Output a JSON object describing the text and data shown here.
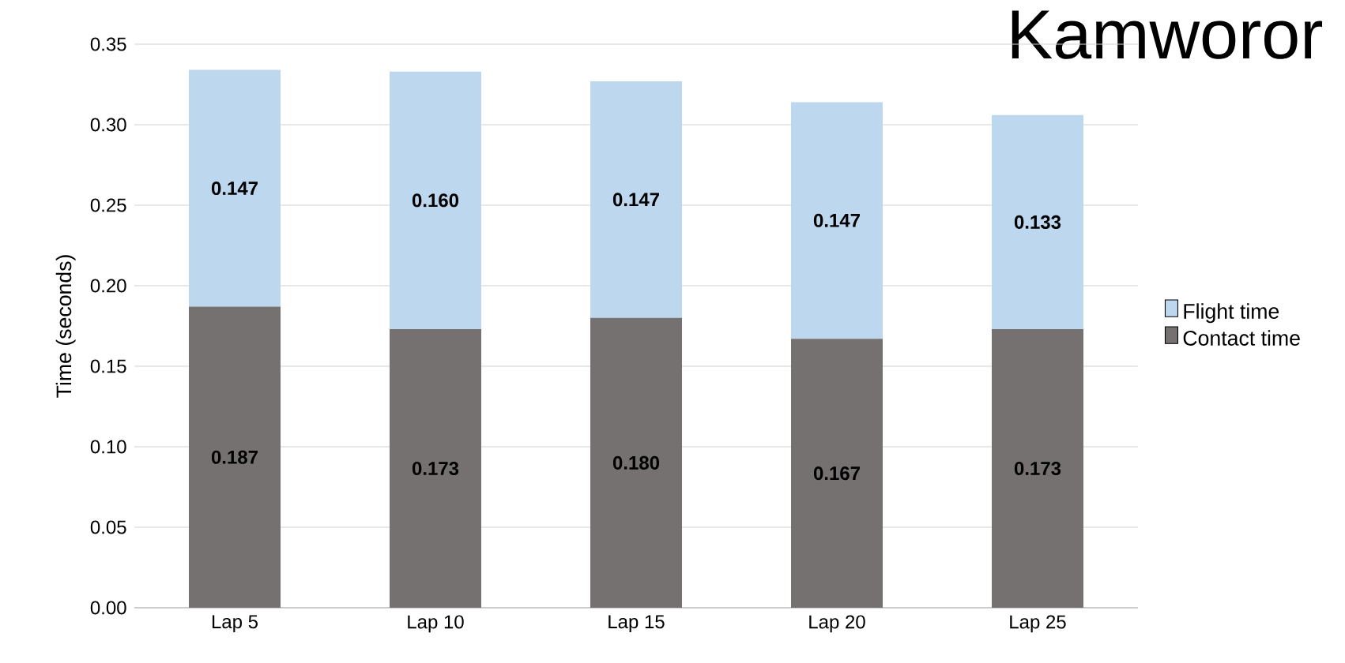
{
  "chart_data": {
    "type": "bar",
    "stacked": true,
    "title": "Kamworor",
    "ylabel": "Time (seconds)",
    "categories": [
      "Lap 5",
      "Lap 10",
      "Lap 15",
      "Lap 20",
      "Lap 25"
    ],
    "series": [
      {
        "name": "Contact time",
        "color": "#767171",
        "values": [
          0.187,
          0.173,
          0.18,
          0.167,
          0.173
        ],
        "value_labels": [
          "0.187",
          "0.173",
          "0.180",
          "0.167",
          "0.173"
        ]
      },
      {
        "name": "Flight time",
        "color": "#bdd7ee",
        "values": [
          0.147,
          0.16,
          0.147,
          0.147,
          0.133
        ],
        "value_labels": [
          "0.147",
          "0.160",
          "0.147",
          "0.147",
          "0.133"
        ]
      }
    ],
    "ylim": [
      0,
      0.35
    ],
    "yticks": [
      {
        "value": 0,
        "label": "0.00"
      },
      {
        "value": 0.05,
        "label": "0.05"
      },
      {
        "value": 0.1,
        "label": "0.10"
      },
      {
        "value": 0.15,
        "label": "0.15"
      },
      {
        "value": 0.2,
        "label": "0.20"
      },
      {
        "value": 0.25,
        "label": "0.25"
      },
      {
        "value": 0.3,
        "label": "0.30"
      },
      {
        "value": 0.35,
        "label": "0.35"
      }
    ],
    "grid": "y",
    "legend": "right"
  }
}
